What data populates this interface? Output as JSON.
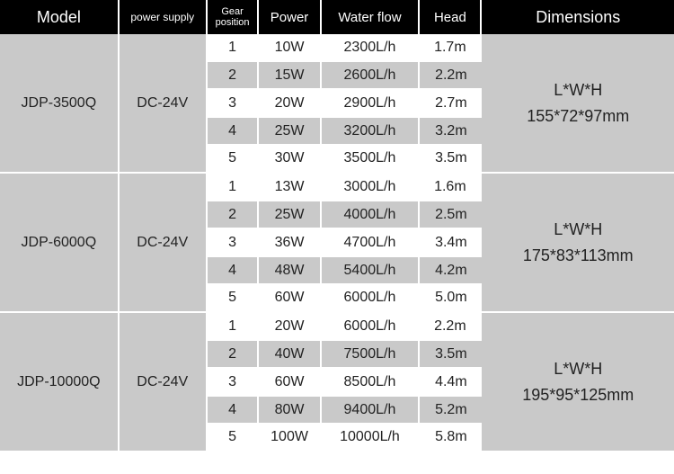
{
  "type": "table",
  "columns": [
    {
      "key": "model",
      "label": "Model",
      "width": 115,
      "header_fontsize": 18
    },
    {
      "key": "power_supply",
      "label": "power supply",
      "width": 85,
      "header_fontsize": 12
    },
    {
      "key": "gear",
      "label": "Gear\nposition",
      "width": 50,
      "header_fontsize": 11
    },
    {
      "key": "power",
      "label": "Power",
      "width": 60,
      "header_fontsize": 15
    },
    {
      "key": "flow",
      "label": "Water flow",
      "width": 95,
      "header_fontsize": 15
    },
    {
      "key": "head",
      "label": "Head",
      "width": 60,
      "header_fontsize": 15
    },
    {
      "key": "dimensions",
      "label": "Dimensions",
      "width": 185,
      "header_fontsize": 18
    }
  ],
  "colors": {
    "header_bg": "#000000",
    "header_text": "#ffffff",
    "block_bg": "#c9c9c9",
    "row_alt_bg": "#c9c9c9",
    "row_bg": "#ffffff",
    "gap": "#ffffff",
    "body_text": "#222222"
  },
  "groups": [
    {
      "model": "JDP-3500Q",
      "power_supply": "DC-24V",
      "dim_label": "L*W*H",
      "dim_value": "155*72*97mm",
      "rows": [
        {
          "gear": "1",
          "power": "10W",
          "flow": "2300L/h",
          "head": "1.7m"
        },
        {
          "gear": "2",
          "power": "15W",
          "flow": "2600L/h",
          "head": "2.2m"
        },
        {
          "gear": "3",
          "power": "20W",
          "flow": "2900L/h",
          "head": "2.7m"
        },
        {
          "gear": "4",
          "power": "25W",
          "flow": "3200L/h",
          "head": "3.2m"
        },
        {
          "gear": "5",
          "power": "30W",
          "flow": "3500L/h",
          "head": "3.5m"
        }
      ]
    },
    {
      "model": "JDP-6000Q",
      "power_supply": "DC-24V",
      "dim_label": "L*W*H",
      "dim_value": "175*83*113mm",
      "rows": [
        {
          "gear": "1",
          "power": "13W",
          "flow": "3000L/h",
          "head": "1.6m"
        },
        {
          "gear": "2",
          "power": "25W",
          "flow": "4000L/h",
          "head": "2.5m"
        },
        {
          "gear": "3",
          "power": "36W",
          "flow": "4700L/h",
          "head": "3.4m"
        },
        {
          "gear": "4",
          "power": "48W",
          "flow": "5400L/h",
          "head": "4.2m"
        },
        {
          "gear": "5",
          "power": "60W",
          "flow": "6000L/h",
          "head": "5.0m"
        }
      ]
    },
    {
      "model": "JDP-10000Q",
      "power_supply": "DC-24V",
      "dim_label": "L*W*H",
      "dim_value": "195*95*125mm",
      "rows": [
        {
          "gear": "1",
          "power": "20W",
          "flow": "6000L/h",
          "head": "2.2m"
        },
        {
          "gear": "2",
          "power": "40W",
          "flow": "7500L/h",
          "head": "3.5m"
        },
        {
          "gear": "3",
          "power": "60W",
          "flow": "8500L/h",
          "head": "4.4m"
        },
        {
          "gear": "4",
          "power": "80W",
          "flow": "9400L/h",
          "head": "5.2m"
        },
        {
          "gear": "5",
          "power": "100W",
          "flow": "10000L/h",
          "head": "5.8m"
        }
      ]
    }
  ]
}
